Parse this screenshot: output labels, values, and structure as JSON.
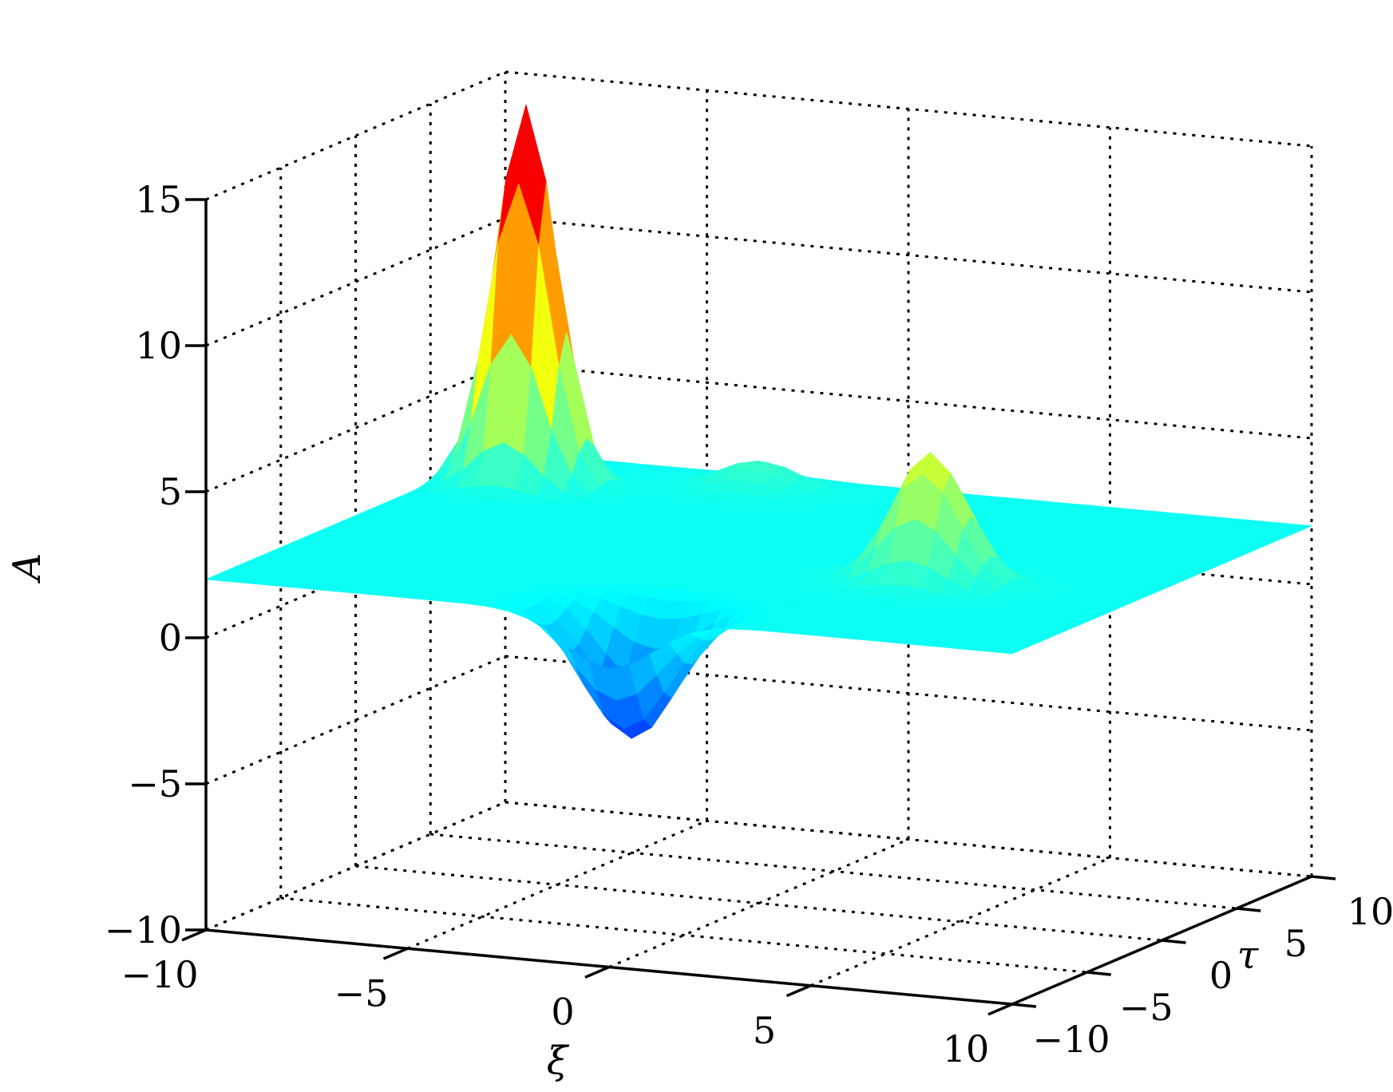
{
  "chart_data": {
    "type": "surface",
    "title": "",
    "xlabel": "ξ",
    "ylabel": "τ",
    "zlabel": "A",
    "xlim": [
      -10,
      10
    ],
    "ylim": [
      -10,
      10
    ],
    "zlim": [
      -10,
      15
    ],
    "x_ticks": [
      -10,
      -5,
      0,
      5,
      10
    ],
    "y_ticks": [
      -10,
      -5,
      0,
      5,
      10
    ],
    "z_ticks": [
      -10,
      -5,
      0,
      5,
      10,
      15
    ],
    "x_tick_labels": [
      "−10",
      "−5",
      "0",
      "5",
      "10"
    ],
    "y_tick_labels": [
      "−10",
      "−5",
      "0",
      "5",
      "10"
    ],
    "z_tick_labels": [
      "−10",
      "−5",
      "0",
      "5",
      "10",
      "15"
    ],
    "grid": true,
    "grid_style": "dotted",
    "colormap": "jet",
    "baseline": 2,
    "features": [
      {
        "kind": "peak",
        "xi": -8,
        "tau": 6,
        "A": 15
      },
      {
        "kind": "peak",
        "xi": 5,
        "tau": -2,
        "A": 6.5
      },
      {
        "kind": "trough",
        "xi": 0,
        "tau": -8.5,
        "A": -2.5
      },
      {
        "kind": "bump",
        "xi": -3,
        "tau": 8,
        "A": 3
      }
    ]
  }
}
